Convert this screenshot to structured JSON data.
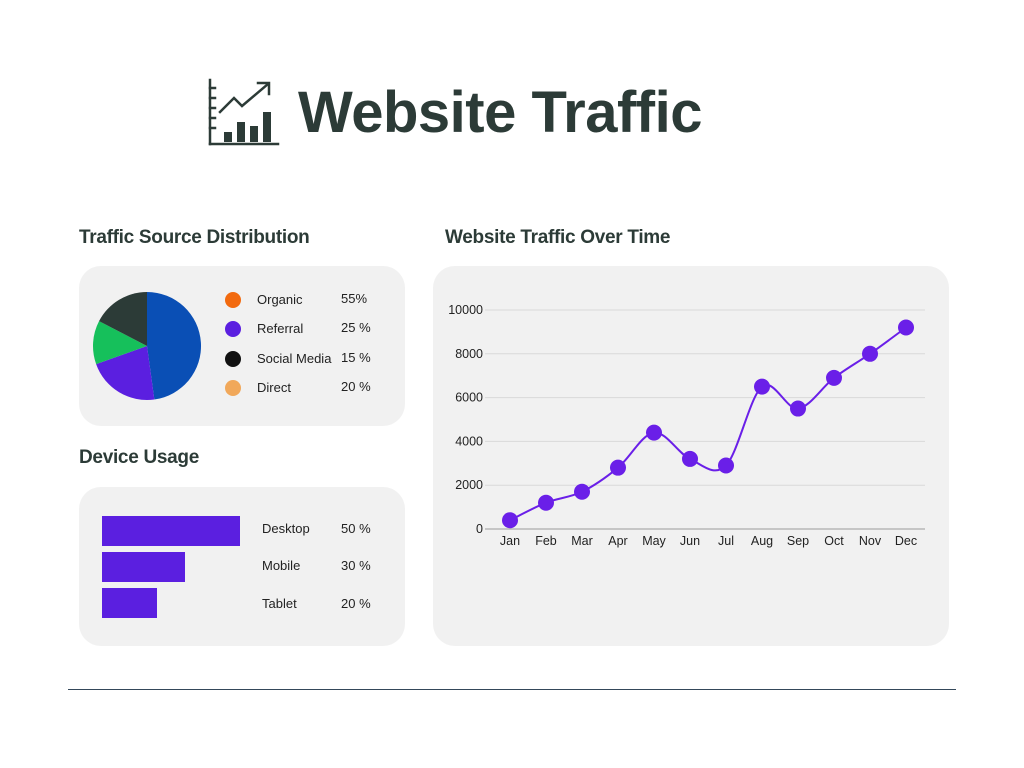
{
  "header": {
    "title": "Website Traffic",
    "icon": "chart-growth-icon"
  },
  "sections": {
    "source_title": "Traffic Source Distribution",
    "device_title": "Device Usage",
    "time_title": "Website Traffic Over Time"
  },
  "chart_data": [
    {
      "type": "pie",
      "title": "Traffic Source Distribution",
      "slices": [
        {
          "label": "Organic",
          "value": 55,
          "display": "55%",
          "legend_color": "#f26a0f",
          "slice_color": "#0a4fb5"
        },
        {
          "label": "Referral",
          "value": 25,
          "display": "25 %",
          "legend_color": "#5b1fe0",
          "slice_color": "#5b1fe0"
        },
        {
          "label": "Social Media",
          "value": 15,
          "display": "15 %",
          "legend_color": "#111111",
          "slice_color": "#16c05b"
        },
        {
          "label": "Direct",
          "value": 20,
          "display": "20 %",
          "legend_color": "#f1a85a",
          "slice_color": "#2c3b37"
        }
      ]
    },
    {
      "type": "bar",
      "orientation": "horizontal",
      "title": "Device Usage",
      "categories": [
        "Desktop",
        "Mobile",
        "Tablet"
      ],
      "values": [
        50,
        30,
        20
      ],
      "display": [
        "50 %",
        "30 %",
        "20 %"
      ],
      "color": "#5b1fe0"
    },
    {
      "type": "line",
      "title": "Website Traffic Over Time",
      "categories": [
        "Jan",
        "Feb",
        "Mar",
        "Apr",
        "May",
        "Jun",
        "Jul",
        "Aug",
        "Sep",
        "Oct",
        "Nov",
        "Dec"
      ],
      "values": [
        400,
        1200,
        1700,
        2800,
        4400,
        3200,
        2900,
        6500,
        5500,
        6900,
        8000,
        9200
      ],
      "ylim": [
        0,
        10000
      ],
      "yticks": [
        0,
        2000,
        4000,
        6000,
        8000,
        10000
      ],
      "grid": true,
      "smooth": true,
      "color": "#6a1fe8"
    }
  ]
}
